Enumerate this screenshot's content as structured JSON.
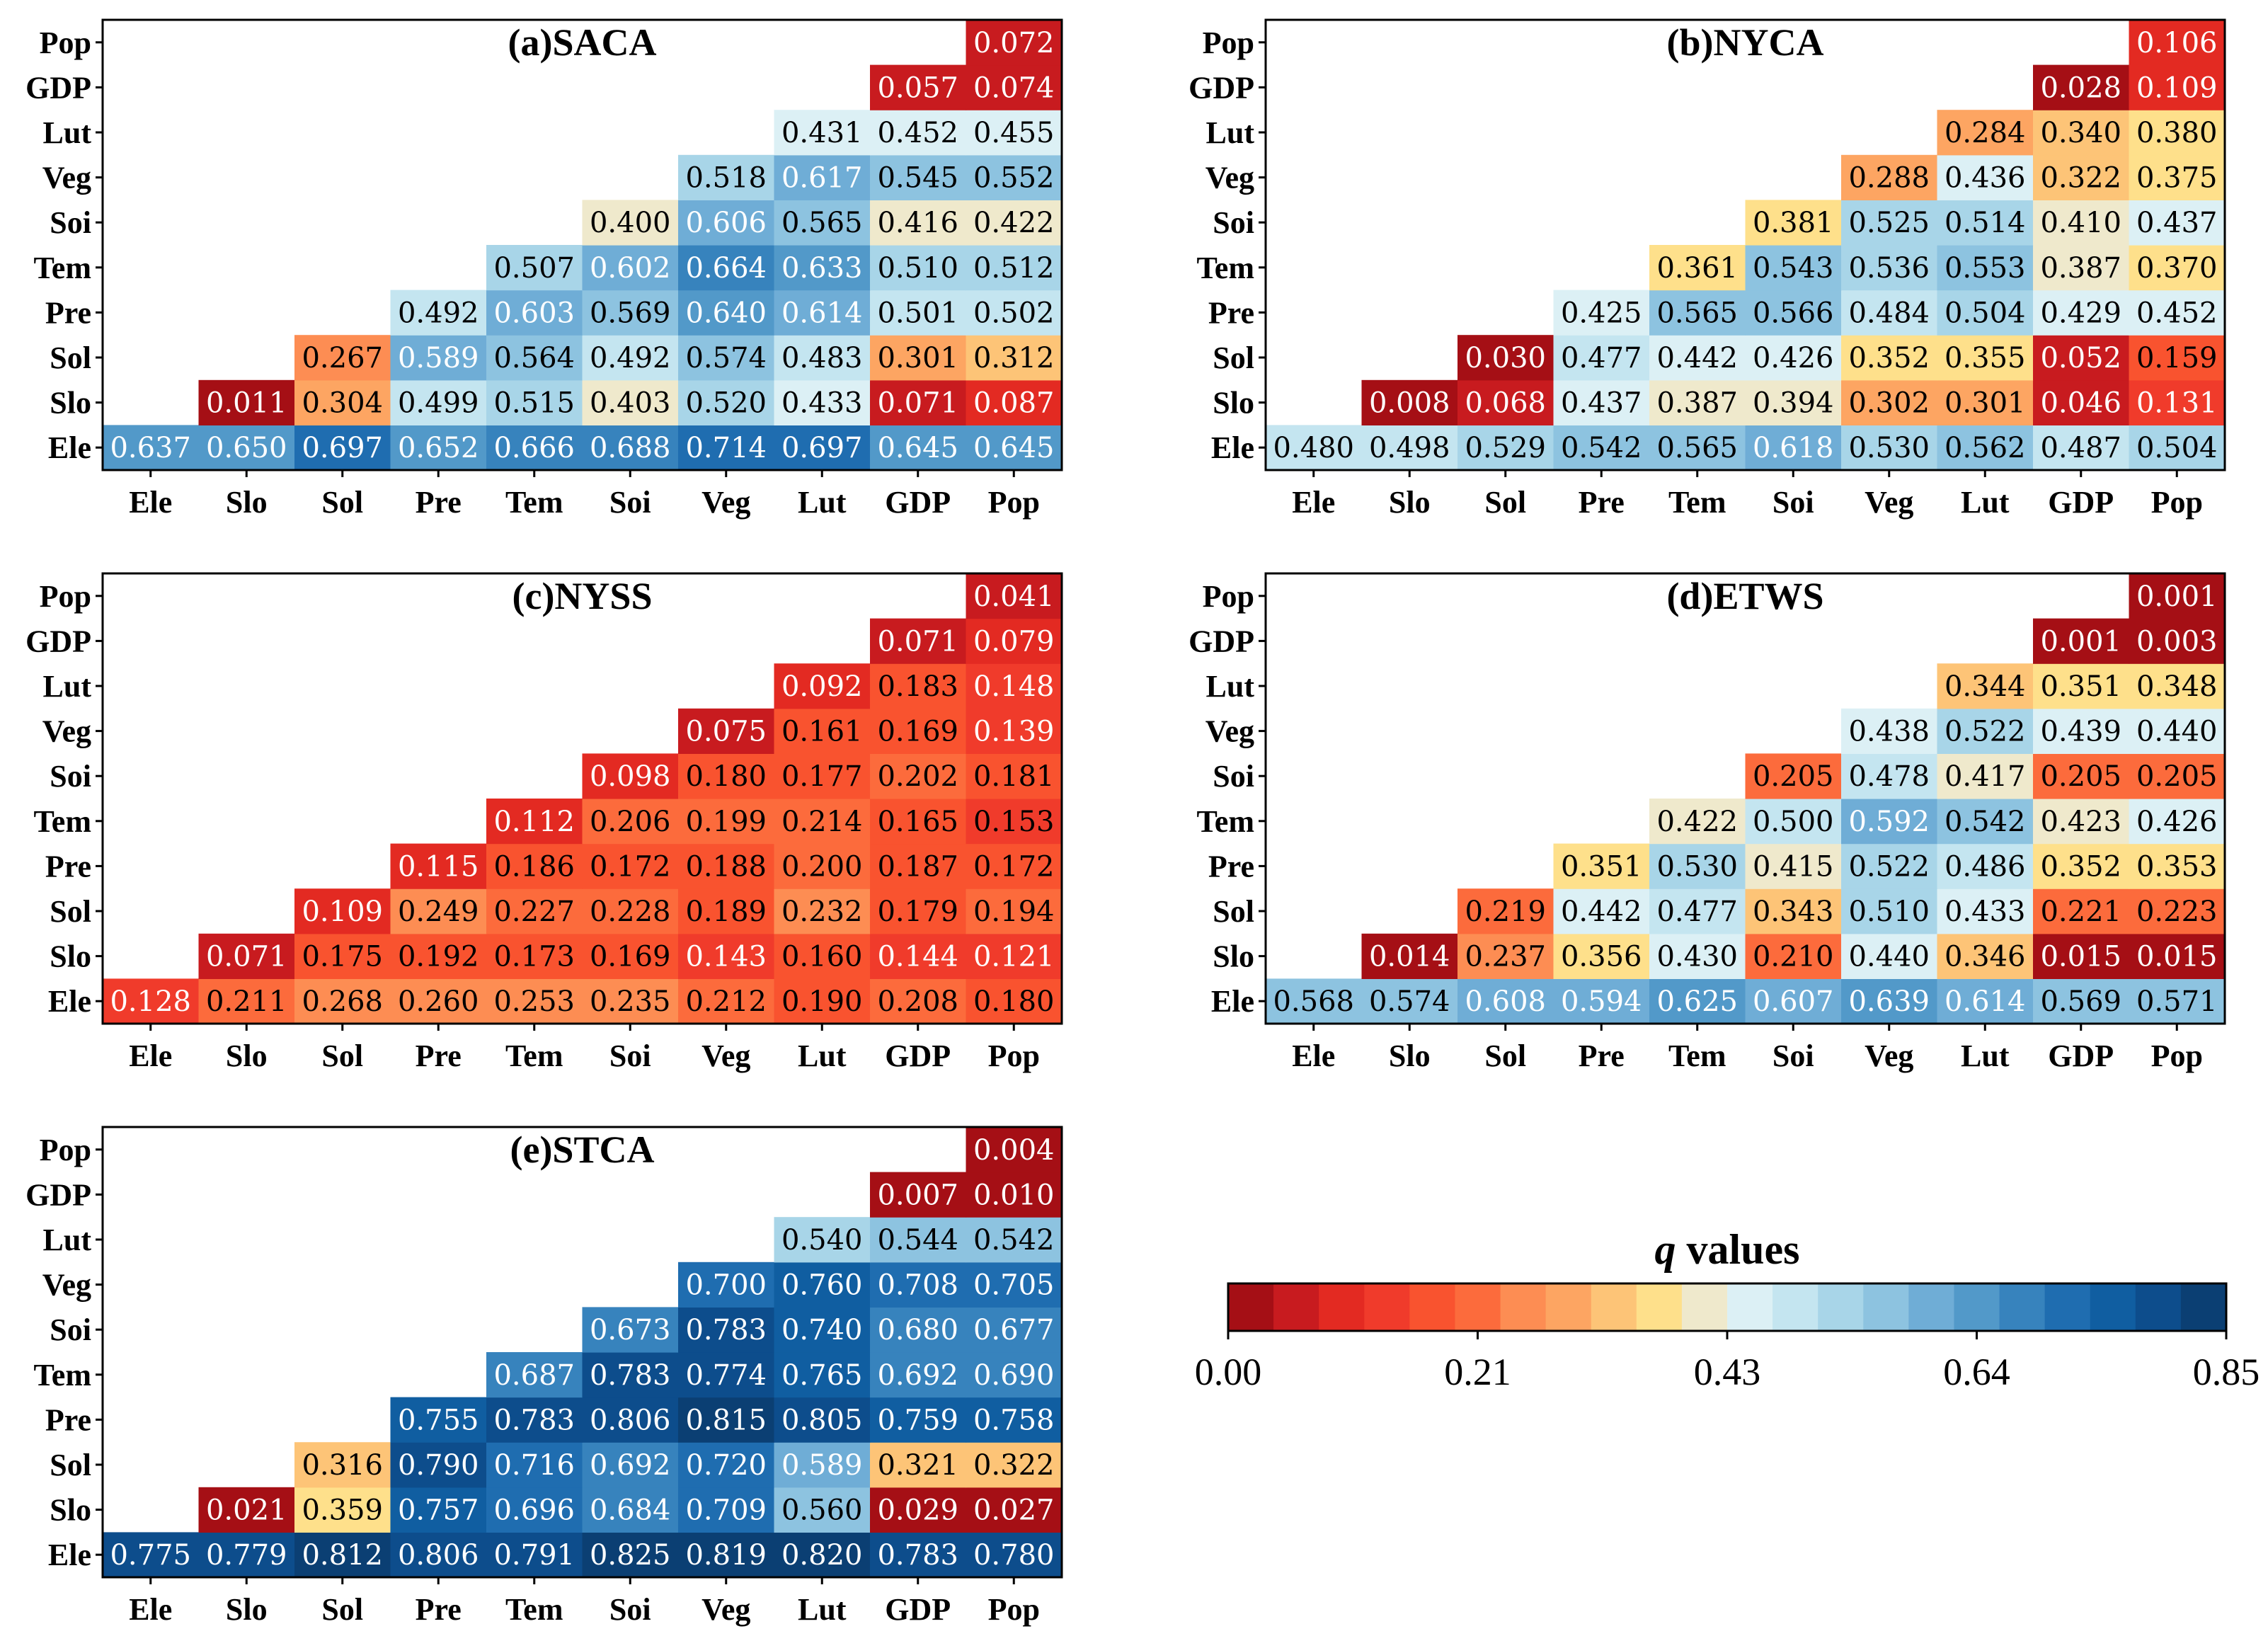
{
  "chart_data": [
    {
      "type": "heatmap",
      "title": "(a)SACA",
      "x_labels": [
        "Ele",
        "Slo",
        "Sol",
        "Pre",
        "Tem",
        "Soi",
        "Veg",
        "Lut",
        "GDP",
        "Pop"
      ],
      "y_labels": [
        "Ele",
        "Slo",
        "Sol",
        "Pre",
        "Tem",
        "Soi",
        "Veg",
        "Lut",
        "GDP",
        "Pop"
      ],
      "values": [
        [
          0.637,
          0.65,
          0.697,
          0.652,
          0.666,
          0.688,
          0.714,
          0.697,
          0.645,
          0.645
        ],
        [
          null,
          0.011,
          0.304,
          0.499,
          0.515,
          0.403,
          0.52,
          0.433,
          0.071,
          0.087
        ],
        [
          null,
          null,
          0.267,
          0.589,
          0.564,
          0.492,
          0.574,
          0.483,
          0.301,
          0.312
        ],
        [
          null,
          null,
          null,
          0.492,
          0.603,
          0.569,
          0.64,
          0.614,
          0.501,
          0.502
        ],
        [
          null,
          null,
          null,
          null,
          0.507,
          0.602,
          0.664,
          0.633,
          0.51,
          0.512
        ],
        [
          null,
          null,
          null,
          null,
          null,
          0.4,
          0.606,
          0.565,
          0.416,
          0.422
        ],
        [
          null,
          null,
          null,
          null,
          null,
          null,
          0.518,
          0.617,
          0.545,
          0.552
        ],
        [
          null,
          null,
          null,
          null,
          null,
          null,
          null,
          0.431,
          0.452,
          0.455
        ],
        [
          null,
          null,
          null,
          null,
          null,
          null,
          null,
          null,
          0.057,
          0.074
        ],
        [
          null,
          null,
          null,
          null,
          null,
          null,
          null,
          null,
          null,
          0.072
        ]
      ]
    },
    {
      "type": "heatmap",
      "title": "(b)NYCA",
      "x_labels": [
        "Ele",
        "Slo",
        "Sol",
        "Pre",
        "Tem",
        "Soi",
        "Veg",
        "Lut",
        "GDP",
        "Pop"
      ],
      "y_labels": [
        "Ele",
        "Slo",
        "Sol",
        "Pre",
        "Tem",
        "Soi",
        "Veg",
        "Lut",
        "GDP",
        "Pop"
      ],
      "values": [
        [
          0.48,
          0.498,
          0.529,
          0.542,
          0.565,
          0.618,
          0.53,
          0.562,
          0.487,
          0.504
        ],
        [
          null,
          0.008,
          0.068,
          0.437,
          0.387,
          0.394,
          0.302,
          0.301,
          0.046,
          0.131
        ],
        [
          null,
          null,
          0.03,
          0.477,
          0.442,
          0.426,
          0.352,
          0.355,
          0.052,
          0.159
        ],
        [
          null,
          null,
          null,
          0.425,
          0.565,
          0.566,
          0.484,
          0.504,
          0.429,
          0.452
        ],
        [
          null,
          null,
          null,
          null,
          0.361,
          0.543,
          0.536,
          0.553,
          0.387,
          0.37
        ],
        [
          null,
          null,
          null,
          null,
          null,
          0.381,
          0.525,
          0.514,
          0.41,
          0.437
        ],
        [
          null,
          null,
          null,
          null,
          null,
          null,
          0.288,
          0.436,
          0.322,
          0.375
        ],
        [
          null,
          null,
          null,
          null,
          null,
          null,
          null,
          0.284,
          0.34,
          0.38
        ],
        [
          null,
          null,
          null,
          null,
          null,
          null,
          null,
          null,
          0.028,
          0.109
        ],
        [
          null,
          null,
          null,
          null,
          null,
          null,
          null,
          null,
          null,
          0.106
        ]
      ]
    },
    {
      "type": "heatmap",
      "title": "(c)NYSS",
      "x_labels": [
        "Ele",
        "Slo",
        "Sol",
        "Pre",
        "Tem",
        "Soi",
        "Veg",
        "Lut",
        "GDP",
        "Pop"
      ],
      "y_labels": [
        "Ele",
        "Slo",
        "Sol",
        "Pre",
        "Tem",
        "Soi",
        "Veg",
        "Lut",
        "GDP",
        "Pop"
      ],
      "values": [
        [
          0.128,
          0.211,
          0.268,
          0.26,
          0.253,
          0.235,
          0.212,
          0.19,
          0.208,
          0.18
        ],
        [
          null,
          0.071,
          0.175,
          0.192,
          0.173,
          0.169,
          0.143,
          0.16,
          0.144,
          0.121
        ],
        [
          null,
          null,
          0.109,
          0.249,
          0.227,
          0.228,
          0.189,
          0.232,
          0.179,
          0.194
        ],
        [
          null,
          null,
          null,
          0.115,
          0.186,
          0.172,
          0.188,
          0.2,
          0.187,
          0.172
        ],
        [
          null,
          null,
          null,
          null,
          0.112,
          0.206,
          0.199,
          0.214,
          0.165,
          0.153
        ],
        [
          null,
          null,
          null,
          null,
          null,
          0.098,
          0.18,
          0.177,
          0.202,
          0.181
        ],
        [
          null,
          null,
          null,
          null,
          null,
          null,
          0.075,
          0.161,
          0.169,
          0.139
        ],
        [
          null,
          null,
          null,
          null,
          null,
          null,
          null,
          0.092,
          0.183,
          0.148
        ],
        [
          null,
          null,
          null,
          null,
          null,
          null,
          null,
          null,
          0.071,
          0.079
        ],
        [
          null,
          null,
          null,
          null,
          null,
          null,
          null,
          null,
          null,
          0.041
        ]
      ]
    },
    {
      "type": "heatmap",
      "title": "(d)ETWS",
      "x_labels": [
        "Ele",
        "Slo",
        "Sol",
        "Pre",
        "Tem",
        "Soi",
        "Veg",
        "Lut",
        "GDP",
        "Pop"
      ],
      "y_labels": [
        "Ele",
        "Slo",
        "Sol",
        "Pre",
        "Tem",
        "Soi",
        "Veg",
        "Lut",
        "GDP",
        "Pop"
      ],
      "values": [
        [
          0.568,
          0.574,
          0.608,
          0.594,
          0.625,
          0.607,
          0.639,
          0.614,
          0.569,
          0.571
        ],
        [
          null,
          0.014,
          0.237,
          0.356,
          0.43,
          0.21,
          0.44,
          0.346,
          0.015,
          0.015
        ],
        [
          null,
          null,
          0.219,
          0.442,
          0.477,
          0.343,
          0.51,
          0.433,
          0.221,
          0.223
        ],
        [
          null,
          null,
          null,
          0.351,
          0.53,
          0.415,
          0.522,
          0.486,
          0.352,
          0.353
        ],
        [
          null,
          null,
          null,
          null,
          0.422,
          0.5,
          0.592,
          0.542,
          0.423,
          0.426
        ],
        [
          null,
          null,
          null,
          null,
          null,
          0.205,
          0.478,
          0.417,
          0.205,
          0.205
        ],
        [
          null,
          null,
          null,
          null,
          null,
          null,
          0.438,
          0.522,
          0.439,
          0.44
        ],
        [
          null,
          null,
          null,
          null,
          null,
          null,
          null,
          0.344,
          0.351,
          0.348
        ],
        [
          null,
          null,
          null,
          null,
          null,
          null,
          null,
          null,
          0.001,
          0.003
        ],
        [
          null,
          null,
          null,
          null,
          null,
          null,
          null,
          null,
          null,
          0.001
        ]
      ]
    },
    {
      "type": "heatmap",
      "title": "(e)STCA",
      "x_labels": [
        "Ele",
        "Slo",
        "Sol",
        "Pre",
        "Tem",
        "Soi",
        "Veg",
        "Lut",
        "GDP",
        "Pop"
      ],
      "y_labels": [
        "Ele",
        "Slo",
        "Sol",
        "Pre",
        "Tem",
        "Soi",
        "Veg",
        "Lut",
        "GDP",
        "Pop"
      ],
      "values": [
        [
          0.775,
          0.779,
          0.812,
          0.806,
          0.791,
          0.825,
          0.819,
          0.82,
          0.783,
          0.78
        ],
        [
          null,
          0.021,
          0.359,
          0.757,
          0.696,
          0.684,
          0.709,
          0.56,
          0.029,
          0.027
        ],
        [
          null,
          null,
          0.316,
          0.79,
          0.716,
          0.692,
          0.72,
          0.589,
          0.321,
          0.322
        ],
        [
          null,
          null,
          null,
          0.755,
          0.783,
          0.806,
          0.815,
          0.805,
          0.759,
          0.758
        ],
        [
          null,
          null,
          null,
          null,
          0.687,
          0.783,
          0.774,
          0.765,
          0.692,
          0.69
        ],
        [
          null,
          null,
          null,
          null,
          null,
          0.673,
          0.783,
          0.74,
          0.68,
          0.677
        ],
        [
          null,
          null,
          null,
          null,
          null,
          null,
          0.7,
          0.76,
          0.708,
          0.705
        ],
        [
          null,
          null,
          null,
          null,
          null,
          null,
          null,
          0.54,
          0.544,
          0.542
        ],
        [
          null,
          null,
          null,
          null,
          null,
          null,
          null,
          null,
          0.007,
          0.01
        ],
        [
          null,
          null,
          null,
          null,
          null,
          null,
          null,
          null,
          null,
          0.004
        ]
      ]
    }
  ],
  "colorbar": {
    "title_italic": "q",
    "title_rest": " values",
    "min": 0,
    "max": 0.85,
    "tick_labels": [
      "0.00",
      "0.21",
      "0.43",
      "0.64",
      "0.85"
    ],
    "colors": [
      "#a50f15",
      "#c81b1f",
      "#e32a22",
      "#f03b2b",
      "#f9532f",
      "#fc6b3c",
      "#fd8d53",
      "#fda562",
      "#fdc477",
      "#fee08b",
      "#efe9cc",
      "#dcf0f5",
      "#c4e5f0",
      "#a8d5e8",
      "#8dc3e0",
      "#6fadd6",
      "#5299c9",
      "#3783bd",
      "#1f6db0",
      "#105ea1",
      "#0d4d8c",
      "#0b3f73"
    ]
  }
}
